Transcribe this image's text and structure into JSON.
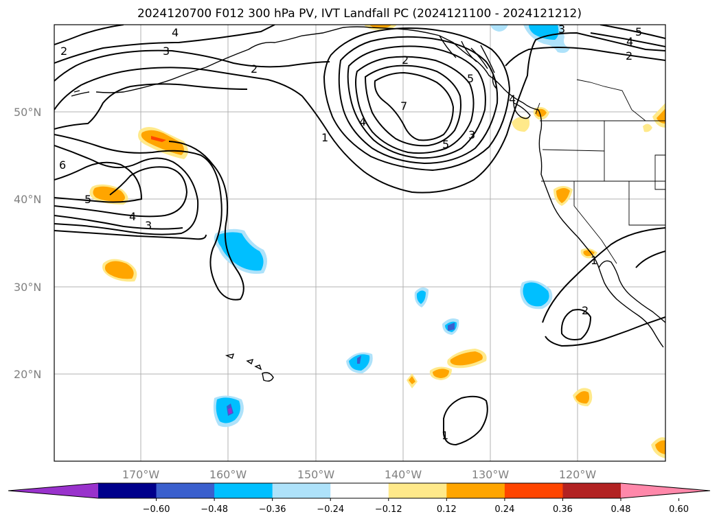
{
  "title": "2024120700 F012 300 hPa PV, IVT Landfall PC (2024121100 - 2024121212)",
  "map": {
    "lat_labels": [
      "50°N",
      "40°N",
      "30°N",
      "20°N"
    ],
    "lon_labels": [
      "170°W",
      "160°W",
      "150°W",
      "140°W",
      "130°W",
      "120°W"
    ],
    "contour_labels": [
      "4",
      "3",
      "2",
      "2",
      "6",
      "5",
      "4",
      "3",
      "5",
      "4",
      "3",
      "1",
      "7",
      "4",
      "5",
      "3",
      "2",
      "5",
      "4",
      "2",
      "1",
      "2",
      "1"
    ]
  },
  "colorbar": {
    "ticks": [
      "−0.60",
      "−0.48",
      "−0.36",
      "−0.24",
      "−0.12",
      "0.12",
      "0.24",
      "0.36",
      "0.48",
      "0.60"
    ],
    "colors": [
      "#9932cc",
      "#00008b",
      "#3a5fcd",
      "#00bfff",
      "#aee2fa",
      "#ffffff",
      "#ffe98a",
      "#ffa500",
      "#ff4500",
      "#b22222",
      "#ff88aa"
    ]
  },
  "colors": {
    "grid": "#b0b0b0",
    "contour": "#000000",
    "coast": "#000000"
  }
}
